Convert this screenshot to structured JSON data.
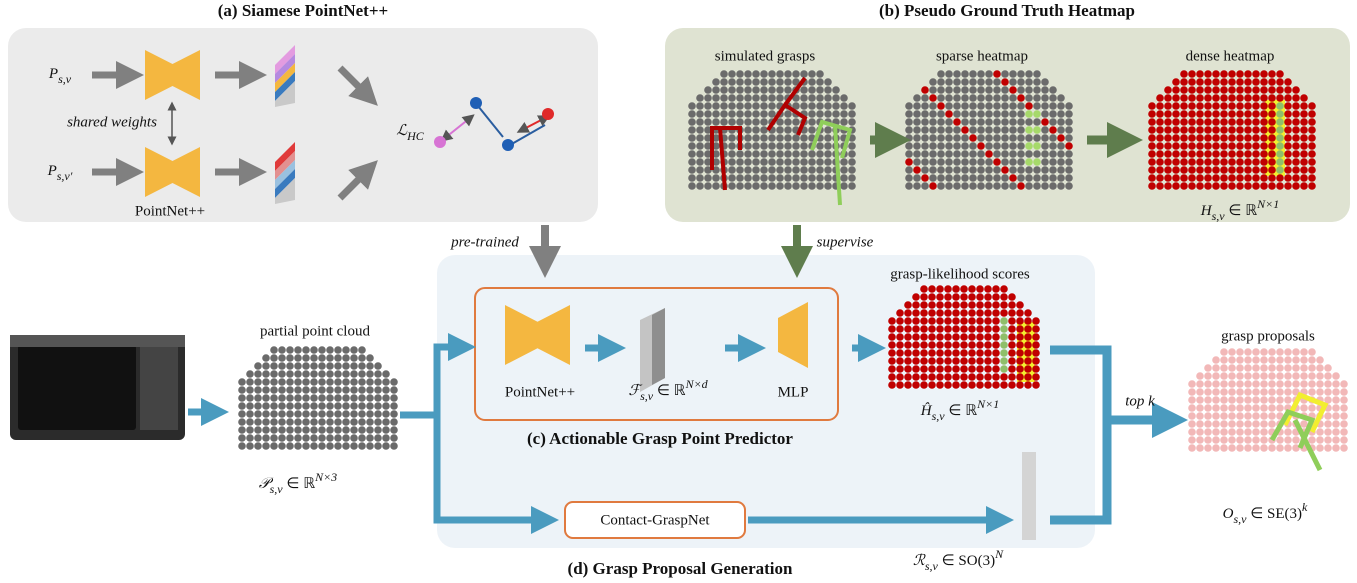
{
  "panel_a": {
    "title": "(a) Siamese PointNet++",
    "input_1": {
      "base": "P",
      "sub": "s,v"
    },
    "input_2": {
      "base": "P",
      "sub": "s,v′"
    },
    "shared": "shared weights",
    "encoder": "PointNet++",
    "loss": {
      "base": "ℒ",
      "sub": "HC"
    }
  },
  "panel_b": {
    "title": "(b) Pseudo Ground Truth Heatmap",
    "steps": [
      "simulated grasps",
      "sparse heatmap",
      "dense heatmap"
    ],
    "output": {
      "base": "H",
      "sub": "s,v",
      "rel": " ∈ ℝ",
      "sup": "N×1"
    }
  },
  "edges": {
    "pretrained": "pre-trained",
    "supervise": "supervise",
    "topk": "top k"
  },
  "input": {
    "label": "partial point cloud",
    "math": {
      "base": "𝒫",
      "sub": "s,v",
      "rel": " ∈ ℝ",
      "sup": "N×3"
    }
  },
  "panel_c": {
    "title": "(c) Actionable Grasp Point Predictor",
    "encoder": "PointNet++",
    "feature": {
      "base": "ℱ",
      "sub": "s,v",
      "rel": " ∈ ℝ",
      "sup": "N×d"
    },
    "head": "MLP",
    "scores_label": "grasp-likelihood scores",
    "scores": {
      "base": "Ĥ",
      "sub": "s,v",
      "rel": " ∈ ℝ",
      "sup": "N×1"
    }
  },
  "panel_d": {
    "title": "(d) Grasp Proposal Generation",
    "model": "Contact-GraspNet",
    "rotations": {
      "base": "ℛ",
      "sub": "s,v",
      "rel": " ∈ SO(3)",
      "sup": "N"
    },
    "proposals_label": "grasp proposals",
    "proposals": {
      "base": "O",
      "sub": "s,v",
      "rel": " ∈ SE(3)",
      "sup": "k"
    }
  }
}
